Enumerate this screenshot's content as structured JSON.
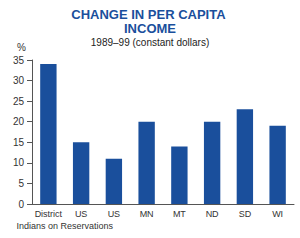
{
  "chart_data": {
    "type": "bar",
    "title": "CHANGE IN PER CAPITA INCOME",
    "subtitle": "1989–99 (constant dollars)",
    "y_label": "%",
    "categories": [
      "District",
      "US",
      "US",
      "MN",
      "MT",
      "ND",
      "SD",
      "WI"
    ],
    "annotations": [
      {
        "text": "Indians on Reservations",
        "categories": [
          0,
          1
        ]
      }
    ],
    "values": [
      34,
      15,
      11,
      20,
      14,
      20,
      23,
      19
    ],
    "color": "#1a4f9c",
    "ylim": [
      0,
      35
    ],
    "yticks": [
      0,
      5,
      10,
      15,
      20,
      25,
      30,
      35
    ],
    "grid": false
  }
}
